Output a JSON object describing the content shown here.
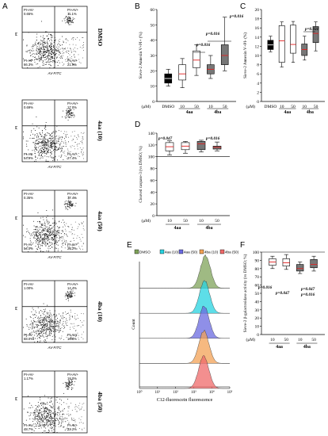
{
  "panels": {
    "A": "A",
    "B": "B",
    "C": "C",
    "D": "D",
    "E": "E",
    "F": "F"
  },
  "flow": {
    "xlabel": "AV-FITC",
    "ylabel": "PI",
    "quad_labels": {
      "ul": "PI+AV-",
      "ur": "PI+AV+",
      "ll": "PI-AV-",
      "lr": "PI-AV+"
    },
    "plots": [
      {
        "condition": "DMSO",
        "ul": "0.65%",
        "ur": "11.1%",
        "ll": "66.3%",
        "lr": "21.9%"
      },
      {
        "condition": "4aa (10)",
        "ul": "0.69%",
        "ur": "17.0%",
        "ll": "54.9%",
        "lr": "27.4%"
      },
      {
        "condition": "4aa (50)",
        "ul": "0.35%",
        "ur": "17.4%",
        "ll": "54.0%",
        "lr": "28.2%"
      },
      {
        "condition": "4ba (10)",
        "ul": "1.00%",
        "ur": "14.4%",
        "ll": "68.0%",
        "lr": "16.5%"
      },
      {
        "condition": "4ba (50)",
        "ul": "1.17%",
        "ur": "18.0%",
        "ll": "48.7%",
        "lr": "32.2%"
      }
    ]
  },
  "chart_data": [
    {
      "panel": "B",
      "type": "box",
      "ylabel": "Sieve-2 Annexin V+PI+ (%)",
      "ylim": [
        0,
        60
      ],
      "yticks": [
        0,
        10,
        20,
        30,
        40,
        50,
        60
      ],
      "unit_label": "(μM)",
      "categories": [
        "DMSO",
        "10",
        "50",
        "10",
        "50"
      ],
      "groups": [
        {
          "label": "4aa",
          "span": [
            1,
            2
          ]
        },
        {
          "label": "4ba",
          "span": [
            3,
            4
          ]
        }
      ],
      "boxes": [
        {
          "min": 10,
          "q1": 12,
          "median": 15,
          "q3": 18,
          "max": 21,
          "style": "black"
        },
        {
          "min": 9,
          "q1": 14,
          "median": 18,
          "q3": 24,
          "max": 28,
          "style": "white"
        },
        {
          "min": 17,
          "q1": 22,
          "median": 27,
          "q3": 33,
          "max": 37,
          "style": "white"
        },
        {
          "min": 15,
          "q1": 18,
          "median": 21,
          "q3": 24,
          "max": 30,
          "style": "gray"
        },
        {
          "min": 20,
          "q1": 24,
          "median": 30,
          "q3": 37,
          "max": 55,
          "style": "gray"
        }
      ],
      "annotations": [
        "p=0.016",
        "p=0.016",
        "p=0.016"
      ]
    },
    {
      "panel": "C",
      "type": "box",
      "ylabel": "Sieve-2 Annexin V+PI- (%)",
      "ylim": [
        0,
        20
      ],
      "yticks": [
        0,
        2,
        4,
        6,
        8,
        10,
        12,
        14,
        16,
        18,
        20
      ],
      "unit_label": "(μM)",
      "categories": [
        "DMSO",
        "10",
        "50",
        "10",
        "50"
      ],
      "groups": [
        {
          "label": "4aa",
          "span": [
            1,
            2
          ]
        },
        {
          "label": "4ba",
          "span": [
            3,
            4
          ]
        }
      ],
      "boxes": [
        {
          "min": 10.8,
          "q1": 11.3,
          "median": 12.3,
          "q3": 13.3,
          "max": 14.2,
          "style": "black"
        },
        {
          "min": 7.5,
          "q1": 8.5,
          "median": 13.2,
          "q3": 16.5,
          "max": 17.3,
          "style": "white"
        },
        {
          "min": 8.5,
          "q1": 10.5,
          "median": 12.4,
          "q3": 16.6,
          "max": 17.4,
          "style": "white"
        },
        {
          "min": 9.0,
          "q1": 10.0,
          "median": 11.3,
          "q3": 12.5,
          "max": 14.2,
          "style": "gray"
        },
        {
          "min": 11.0,
          "q1": 12.8,
          "median": 14.8,
          "q3": 16.3,
          "max": 17.3,
          "style": "gray"
        }
      ],
      "annotations": [
        "p=0.031"
      ]
    },
    {
      "panel": "D",
      "type": "box",
      "ylabel": "Cleaved caspase-3 (vs DMSO; %)",
      "ylim": [
        0,
        140
      ],
      "yticks": [
        0,
        20,
        40,
        60,
        80,
        100,
        120,
        140
      ],
      "reference_line": 100,
      "unit_label": "(μM)",
      "categories": [
        "10",
        "50",
        "10",
        "50"
      ],
      "groups": [
        {
          "label": "4aa",
          "span": [
            0,
            1
          ]
        },
        {
          "label": "4ba",
          "span": [
            2,
            3
          ]
        }
      ],
      "boxes": [
        {
          "min": 103,
          "q1": 110,
          "median": 117,
          "q3": 124,
          "max": 127,
          "style": "white"
        },
        {
          "min": 106,
          "q1": 112,
          "median": 118,
          "q3": 124,
          "max": 126,
          "style": "white"
        },
        {
          "min": 108,
          "q1": 112,
          "median": 122,
          "q3": 126,
          "max": 128,
          "style": "gray"
        },
        {
          "min": 110,
          "q1": 113,
          "median": 116,
          "q3": 118,
          "max": 125,
          "style": "gray"
        }
      ],
      "annotations": [
        "p=0.047",
        "p=0.016"
      ]
    },
    {
      "panel": "F",
      "type": "box",
      "ylabel": "Sieve-2 β-galactosidase activity (vs DMSO; %)",
      "ylim": [
        0,
        100
      ],
      "yticks": [
        0,
        10,
        20,
        30,
        40,
        50,
        60,
        70,
        80,
        90,
        100
      ],
      "reference_line": 100,
      "unit_label": "(μM)",
      "categories": [
        "10",
        "50",
        "10",
        "50"
      ],
      "groups": [
        {
          "label": "4aa",
          "span": [
            0,
            1
          ]
        },
        {
          "label": "4ba",
          "span": [
            2,
            3
          ]
        }
      ],
      "boxes": [
        {
          "min": 80,
          "q1": 84,
          "median": 88,
          "q3": 92,
          "max": 95,
          "style": "white"
        },
        {
          "min": 79,
          "q1": 83,
          "median": 87,
          "q3": 92,
          "max": 97,
          "style": "white"
        },
        {
          "min": 74,
          "q1": 77,
          "median": 80,
          "q3": 85,
          "max": 88,
          "style": "gray"
        },
        {
          "min": 77,
          "q1": 81,
          "median": 85,
          "q3": 91,
          "max": 95,
          "style": "gray"
        }
      ],
      "annotations": [
        "p=0.016",
        "p=0.047",
        "p=0.047",
        "p=0.016"
      ]
    },
    {
      "panel": "E",
      "type": "histogram",
      "xlabel": "C12-fluorescein fluorescence",
      "ylabel": "Count",
      "xscale": "log",
      "xlim": [
        1,
        100000
      ],
      "xtick_labels": [
        "10⁰",
        "10¹",
        "10²",
        "10³",
        "10⁴",
        "10⁵"
      ],
      "legend": [
        {
          "name": "DMSO",
          "color": "#7fa35a"
        },
        {
          "name": "4aa (10)",
          "color": "#27d3e0"
        },
        {
          "name": "4aa (50)",
          "color": "#6a6ae0"
        },
        {
          "name": "4ba (10)",
          "color": "#f3a256"
        },
        {
          "name": "4ba (50)",
          "color": "#ef6a6a"
        }
      ],
      "series_peaks": [
        {
          "name": "DMSO",
          "peak_x": 4500
        },
        {
          "name": "4aa (10)",
          "peak_x": 4000
        },
        {
          "name": "4aa (50)",
          "peak_x": 3800
        },
        {
          "name": "4ba (10)",
          "peak_x": 3700
        },
        {
          "name": "4ba (50)",
          "peak_x": 3600
        }
      ]
    }
  ]
}
